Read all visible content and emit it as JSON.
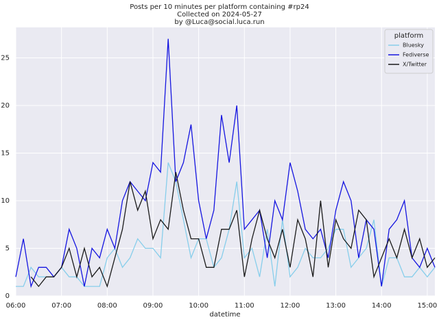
{
  "chart_data": {
    "type": "line",
    "title": [
      "Posts per 10 minutes per platform containing #rp24",
      "Collected on 2024-05-27",
      "by @Luca@social.luca.run"
    ],
    "x_label": "datetime",
    "x": [
      "06:00",
      "06:10",
      "06:20",
      "06:30",
      "06:40",
      "06:50",
      "07:00",
      "07:10",
      "07:20",
      "07:30",
      "07:40",
      "07:50",
      "08:00",
      "08:10",
      "08:20",
      "08:30",
      "08:40",
      "08:50",
      "09:00",
      "09:10",
      "09:20",
      "09:30",
      "09:40",
      "09:50",
      "10:00",
      "10:10",
      "10:20",
      "10:30",
      "10:40",
      "10:50",
      "11:00",
      "11:10",
      "11:20",
      "11:30",
      "11:40",
      "11:50",
      "12:00",
      "12:10",
      "12:20",
      "12:30",
      "12:40",
      "12:50",
      "13:00",
      "13:10",
      "13:20",
      "13:30",
      "13:40",
      "13:50",
      "14:00",
      "14:10",
      "14:20",
      "14:30",
      "14:40",
      "14:50",
      "15:00",
      "15:10"
    ],
    "xticks": [
      "06:00",
      "07:00",
      "08:00",
      "09:00",
      "10:00",
      "11:00",
      "12:00",
      "13:00",
      "14:00",
      "15:00"
    ],
    "ylim": [
      0,
      28.2
    ],
    "yticks": [
      0,
      5,
      10,
      15,
      20,
      25
    ],
    "grid": true,
    "legend_title": "platform",
    "legend": "upper right",
    "series": [
      {
        "name": "Bluesky",
        "color": "#87ceeb",
        "values": [
          1,
          1,
          3,
          2,
          2,
          2,
          3,
          2,
          2,
          1,
          1,
          1,
          4,
          5,
          3,
          4,
          6,
          5,
          5,
          4,
          14,
          12,
          8,
          4,
          6,
          6,
          3,
          4,
          7,
          12,
          4,
          5,
          2,
          7,
          1,
          8,
          2,
          3,
          5,
          4,
          4,
          5,
          7,
          7,
          3,
          4,
          5,
          8,
          1,
          4,
          4,
          2,
          2,
          3,
          2,
          3
        ]
      },
      {
        "name": "Fediverse",
        "color": "#1515e0",
        "values": [
          2,
          6,
          1,
          3,
          3,
          2,
          3,
          7,
          5,
          1,
          5,
          4,
          7,
          5,
          10,
          12,
          11,
          10,
          14,
          13,
          27,
          12,
          14,
          18,
          10,
          6,
          9,
          19,
          14,
          20,
          7,
          8,
          9,
          4,
          10,
          8,
          14,
          11,
          7,
          6,
          7,
          4,
          9,
          12,
          10,
          4,
          8,
          7,
          1,
          7,
          8,
          10,
          4,
          3,
          5,
          3
        ]
      },
      {
        "name": "X/Twitter",
        "color": "#1a1a1a",
        "values": [
          null,
          null,
          2,
          1,
          2,
          2,
          3,
          5,
          2,
          5,
          2,
          3,
          1,
          4,
          7,
          12,
          9,
          11,
          6,
          8,
          7,
          13,
          9,
          6,
          6,
          3,
          3,
          7,
          7,
          9,
          2,
          6,
          9,
          6,
          4,
          7,
          3,
          8,
          6,
          2,
          10,
          3,
          8,
          6,
          5,
          9,
          8,
          2,
          4,
          6,
          4,
          7,
          4,
          6,
          3,
          4
        ]
      }
    ]
  }
}
